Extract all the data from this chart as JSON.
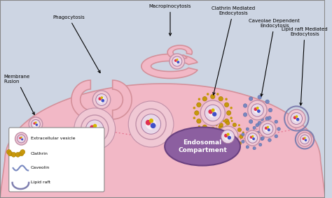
{
  "bg_color": "#cdd5e3",
  "cell_color": "#f2b8c6",
  "cell_edge_color": "#d4909a",
  "endosome_color": "#8c5fa0",
  "endosome_edge": "#6a4080",
  "endosome_text": "Endosomal\nCompartment",
  "legend_bg": "#ffffff",
  "labels": {
    "membrane_fusion": "Membrane\nFusion",
    "phagocytosis": "Phagocytosis",
    "macropinocytosis": "Macropinocytosis",
    "clathrin": "Clathrin Mediated\nEndocytosis",
    "caveolae": "Caveolae Dependent\nEndocytosis",
    "lipid_raft": "Lipid raft Mediated\nEndocytosis"
  },
  "legend_labels": [
    "Extracellular vesicle",
    "Clathrin",
    "Caveolin",
    "Lipid raft"
  ],
  "vesicle_outer_fc": "#f0c8d4",
  "vesicle_outer_ec": "#c090a8",
  "vesicle_mid_fc": "#e8d8e8",
  "vesicle_mid_ec": "#a878a0",
  "vesicle_inner_fc": "#f8f0f4",
  "dot_red": "#e03050",
  "dot_blue": "#4050c8",
  "dot_yellow": "#d4b800",
  "dot_green": "#40a040",
  "clathrin_color": "#c8980a",
  "caveolin_color": "#7888c0",
  "lipid_raft_ec": "#8080b0",
  "dotted_color": "#e06080",
  "arrow_color": "#000000",
  "text_color": "#000000",
  "font_size": 5.0,
  "legend_font_size": 4.5
}
